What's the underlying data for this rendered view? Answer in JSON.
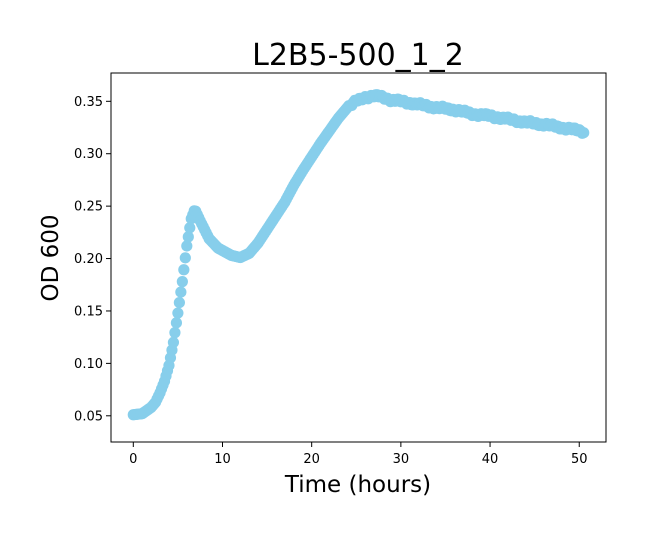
{
  "chart_data": {
    "type": "scatter",
    "title": "L2B5-500_1_2",
    "xlabel": "Time (hours)",
    "ylabel": "OD 600",
    "xlim": [
      -2.5,
      53
    ],
    "ylim": [
      0.025,
      0.377
    ],
    "xticks": [
      0,
      10,
      20,
      30,
      40,
      50
    ],
    "yticks": [
      0.05,
      0.1,
      0.15,
      0.2,
      0.25,
      0.3,
      0.35
    ],
    "grid": false,
    "legend": "none",
    "marker_color": "#87CEEB",
    "anchors": [
      [
        0,
        0.051
      ],
      [
        1,
        0.052
      ],
      [
        2,
        0.058
      ],
      [
        2.5,
        0.063
      ],
      [
        3,
        0.072
      ],
      [
        3.5,
        0.083
      ],
      [
        4,
        0.098
      ],
      [
        4.5,
        0.12
      ],
      [
        5,
        0.148
      ],
      [
        5.5,
        0.178
      ],
      [
        6,
        0.212
      ],
      [
        6.5,
        0.238
      ],
      [
        6.9,
        0.247
      ],
      [
        7.5,
        0.236
      ],
      [
        8.5,
        0.219
      ],
      [
        9.5,
        0.21
      ],
      [
        11,
        0.203
      ],
      [
        12,
        0.201
      ],
      [
        13,
        0.205
      ],
      [
        14,
        0.215
      ],
      [
        15,
        0.228
      ],
      [
        16,
        0.241
      ],
      [
        17,
        0.254
      ],
      [
        18,
        0.27
      ],
      [
        19,
        0.284
      ],
      [
        20,
        0.297
      ],
      [
        21,
        0.31
      ],
      [
        22,
        0.322
      ],
      [
        23,
        0.334
      ],
      [
        24,
        0.344
      ],
      [
        25,
        0.35
      ],
      [
        26,
        0.354
      ],
      [
        27,
        0.355
      ],
      [
        28,
        0.354
      ],
      [
        29,
        0.351
      ],
      [
        30,
        0.35
      ],
      [
        32,
        0.347
      ],
      [
        34,
        0.344
      ],
      [
        36,
        0.342
      ],
      [
        38,
        0.338
      ],
      [
        40,
        0.336
      ],
      [
        42,
        0.333
      ],
      [
        44,
        0.33
      ],
      [
        46,
        0.328
      ],
      [
        48,
        0.325
      ],
      [
        50,
        0.322
      ],
      [
        50.5,
        0.321
      ]
    ]
  }
}
